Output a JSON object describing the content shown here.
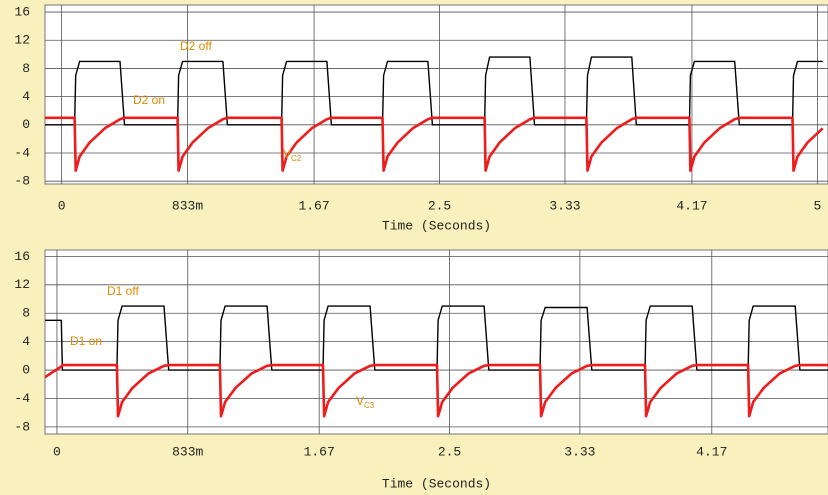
{
  "chart_data": [
    {
      "type": "line",
      "xlabel": "Time (Seconds)",
      "xlim": [
        -0.11,
        5.07
      ],
      "ylim": [
        -8.4,
        17
      ],
      "xticks": [
        0,
        {
          "value": 0.833,
          "label": "833m"
        },
        1.67,
        2.5,
        3.33,
        4.17,
        5
      ],
      "yticks": [
        -8,
        -4,
        0,
        4,
        8,
        12,
        16
      ],
      "grid": true,
      "annotations": [
        {
          "text": "D2 off"
        },
        {
          "text": "D2 on"
        },
        {
          "text": "V",
          "sub": "C2"
        }
      ],
      "x": [
        -0.11,
        0.086,
        0.093,
        0.119,
        0.186,
        0.286,
        0.386,
        0.416,
        0.767,
        0.774,
        0.8,
        0.867,
        0.967,
        1.067,
        1.097,
        1.455,
        1.462,
        1.488,
        1.555,
        1.655,
        1.755,
        1.785,
        2.123,
        2.13,
        2.156,
        2.223,
        2.323,
        2.423,
        2.453,
        2.798,
        2.805,
        2.831,
        2.898,
        2.998,
        3.098,
        3.128,
        3.472,
        3.479,
        3.505,
        3.572,
        3.672,
        3.772,
        3.802,
        4.153,
        4.16,
        4.186,
        4.253,
        4.353,
        4.453,
        4.483,
        4.835,
        4.842,
        4.868,
        4.935,
        5.035
      ],
      "series": [
        {
          "color": "#000000",
          "values": [
            0,
            0,
            7,
            9,
            9,
            9,
            9,
            0,
            0,
            7,
            9,
            9,
            9,
            9,
            0,
            0,
            7,
            9,
            9,
            9,
            9,
            0,
            0,
            7,
            9,
            9,
            9,
            9,
            0,
            0,
            7,
            9.6,
            9.6,
            9.6,
            9.6,
            0,
            0,
            7,
            9.6,
            9.6,
            9.6,
            9.6,
            0,
            0,
            7,
            9,
            9,
            9,
            9,
            0,
            0,
            7,
            9,
            9,
            9
          ]
        },
        {
          "color": "#ee1c1c",
          "values": [
            1,
            1,
            -6.5,
            -4.5,
            -2.5,
            -0.5,
            0.8,
            1,
            1,
            -6.5,
            -4.5,
            -2.5,
            -0.5,
            0.8,
            1,
            1,
            -6.5,
            -4.5,
            -2.5,
            -0.5,
            0.8,
            1,
            1,
            -6.5,
            -4.5,
            -2.5,
            -0.5,
            0.8,
            1,
            1,
            -6.5,
            -4.5,
            -2.5,
            -0.5,
            0.8,
            1,
            1,
            -6.5,
            -4.5,
            -2.5,
            -0.5,
            0.8,
            1,
            1,
            -6.5,
            -4.5,
            -2.5,
            -0.5,
            0.8,
            1,
            1,
            -6.5,
            -4.5,
            -2.5,
            -0.5
          ]
        }
      ]
    },
    {
      "type": "line",
      "xlabel": "Time (Seconds)",
      "xlim": [
        -0.076,
        4.91
      ],
      "ylim": [
        -9,
        16.9
      ],
      "xticks": [
        0,
        {
          "value": 0.833,
          "label": "833m"
        },
        1.67,
        2.5,
        3.33,
        4.17
      ],
      "yticks": [
        -8,
        -4,
        0,
        4,
        8,
        12,
        16
      ],
      "grid": true,
      "annotations": [
        {
          "text": "D1 off"
        },
        {
          "text": "D1 on"
        },
        {
          "text": "V",
          "sub": "C3"
        }
      ],
      "x": [
        -0.076,
        0.028,
        0.035,
        0.382,
        0.389,
        0.415,
        0.482,
        0.582,
        0.682,
        0.712,
        1.038,
        1.045,
        1.071,
        1.138,
        1.238,
        1.338,
        1.368,
        1.694,
        1.701,
        1.727,
        1.794,
        1.894,
        1.994,
        2.024,
        2.42,
        2.427,
        2.453,
        2.52,
        2.62,
        2.72,
        2.75,
        3.076,
        3.083,
        3.109,
        3.176,
        3.276,
        3.376,
        3.406,
        3.745,
        3.752,
        3.778,
        3.845,
        3.945,
        4.045,
        4.075,
        4.401,
        4.408,
        4.434,
        4.501,
        4.601,
        4.701,
        4.731,
        4.91
      ],
      "series": [
        {
          "color": "#000000",
          "values": [
            7,
            7,
            0,
            0,
            7,
            9,
            9,
            9,
            9,
            0,
            0,
            7,
            9,
            9,
            9,
            9,
            0,
            0,
            7,
            9,
            9,
            9,
            9,
            0,
            0,
            7,
            9,
            9,
            9,
            9,
            0,
            0,
            7,
            8.8,
            8.8,
            8.8,
            8.8,
            0,
            0,
            7,
            9,
            9,
            9,
            9,
            0,
            0,
            7,
            9,
            9,
            9,
            9,
            0,
            0
          ]
        },
        {
          "color": "#ee1c1c",
          "values": [
            -1,
            0.5,
            0.7,
            0.7,
            -6.5,
            -4.5,
            -2.5,
            -0.5,
            0.6,
            0.7,
            0.7,
            -6.5,
            -4.5,
            -2.5,
            -0.5,
            0.6,
            0.7,
            0.7,
            -6.5,
            -4.5,
            -2.5,
            -0.5,
            0.6,
            0.7,
            0.7,
            -6.5,
            -4.5,
            -2.5,
            -0.5,
            0.6,
            0.7,
            0.7,
            -6.5,
            -4.5,
            -2.5,
            -0.5,
            0.6,
            0.7,
            0.7,
            -6.5,
            -4.5,
            -2.5,
            -0.5,
            0.6,
            0.7,
            0.7,
            -6.5,
            -4.5,
            -2.5,
            -0.5,
            0.6,
            0.7,
            0.7
          ]
        }
      ]
    }
  ]
}
